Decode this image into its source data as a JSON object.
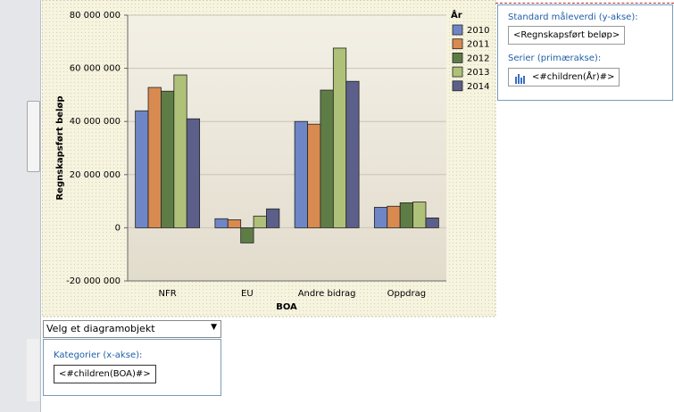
{
  "chart_data": {
    "type": "bar",
    "x_label": "BOA",
    "y_label": "Regnskapsført beløp",
    "legend_title": "År",
    "categories": [
      "NFR",
      "EU",
      "Andre bidrag",
      "Oppdrag"
    ],
    "series": [
      {
        "name": "2010",
        "color": "#6f86c6",
        "values": [
          44000000,
          3400000,
          40000000,
          7700000
        ]
      },
      {
        "name": "2011",
        "color": "#d98a50",
        "values": [
          52800000,
          3000000,
          39000000,
          8100000
        ]
      },
      {
        "name": "2012",
        "color": "#5e7d46",
        "values": [
          51400000,
          -5700000,
          51800000,
          9400000
        ]
      },
      {
        "name": "2013",
        "color": "#afc178",
        "values": [
          57500000,
          4400000,
          67600000,
          9700000
        ]
      },
      {
        "name": "2014",
        "color": "#5c5f8a",
        "values": [
          41000000,
          7100000,
          55100000,
          3700000
        ]
      }
    ],
    "ylim": [
      -20000000,
      80000000
    ],
    "yticks": [
      {
        "value": -20000000,
        "label": "-20 000 000"
      },
      0,
      {
        "value": 20000000,
        "label": "20 000 000"
      },
      {
        "value": 40000000,
        "label": "40 000 000"
      },
      {
        "value": 60000000,
        "label": "60 000 000"
      },
      {
        "value": 80000000,
        "label": "80 000 000"
      }
    ],
    "grid": true,
    "legend": "right"
  },
  "ui": {
    "y_panel_title": "Standard måleverdi (y-akse):",
    "y_field": "<Regnskapsført beløp>",
    "series_panel_title": "Serier (primærakse):",
    "series_field": "<#children(År)#>",
    "dropdown": "Velg et diagramobjekt",
    "x_panel_title": "Kategorier (x-akse):",
    "x_field": "<#children(BOA)#>"
  }
}
